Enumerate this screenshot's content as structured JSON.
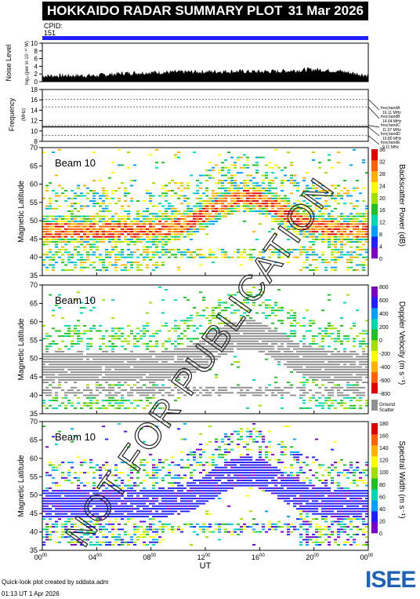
{
  "header": {
    "title": "HOKKAIDO RADAR SUMMARY PLOT",
    "date": "31 Mar 2026"
  },
  "cpid": {
    "label": "CPID:",
    "value": "151"
  },
  "footer": {
    "credit": "Quick-look plot created by sddata.adm",
    "timestamp": "01:13 UT  1 Apr 2026"
  },
  "watermark": "NOT FOR PUBLICATION",
  "logo": {
    "text": "ISEE"
  },
  "colors": {
    "cpid_bar": "#2020ff",
    "ground_scatter": "#909090"
  },
  "chart_data": [
    {
      "type": "area",
      "name": "noise-level",
      "ylabel": "Noise Level",
      "ylabel_sub": "log₁₀(pwr in 10⁻¹⁰ W)",
      "ylim": [
        0,
        10
      ],
      "yticks": [
        "0",
        "2",
        "4",
        "6",
        "8",
        "10"
      ],
      "x": [
        0,
        2,
        4,
        6,
        8,
        10,
        12,
        14,
        16,
        18,
        20,
        22,
        24
      ],
      "values": [
        1.5,
        1.6,
        1.6,
        2.2,
        2.4,
        2.5,
        2.6,
        2.7,
        2.6,
        2.8,
        3.2,
        2.7,
        1.6
      ]
    },
    {
      "type": "line",
      "name": "frequency",
      "ylabel": "Frequency",
      "ylabel_sub": "(MHz)",
      "ylim": [
        8,
        18
      ],
      "yticks": [
        "8",
        "10",
        "12",
        "14",
        "16",
        "18"
      ],
      "bands": [
        {
          "label": "freq bandA",
          "value": "16.11 MHz",
          "mhz": 16.11
        },
        {
          "label": "freq bandB",
          "value": "14.64 MHz",
          "mhz": 14.64
        },
        {
          "label": "freq bandC",
          "value": "11.07 MHz",
          "mhz": 11.07
        },
        {
          "label": "freq bandD",
          "value": "10.80 MHz",
          "mhz": 10.8
        },
        {
          "label": "freq bandE",
          "value": "9.11 MHz",
          "mhz": 9.11
        }
      ],
      "x": [
        0,
        24
      ],
      "values": [
        10.8,
        10.8
      ]
    },
    {
      "type": "heatmap",
      "name": "backscatter-power",
      "beam": "Beam 10",
      "ylabel": "Magnetic Latitude",
      "ylim": [
        35,
        70
      ],
      "yticks": [
        "35",
        "40",
        "45",
        "50",
        "55",
        "60",
        "65",
        "70"
      ],
      "colorbar": {
        "label": "Backscatter Power (dB)",
        "range": [
          0,
          36
        ],
        "ticks": [
          "0",
          "4",
          "8",
          "12",
          "16",
          "20",
          "24",
          "28",
          "32",
          "36"
        ],
        "colors": [
          "#7a00c8",
          "#2020ff",
          "#00a0ff",
          "#00d8b0",
          "#20c020",
          "#a0e000",
          "#ffff00",
          "#ffb000",
          "#ff6000",
          "#e00000"
        ]
      }
    },
    {
      "type": "heatmap",
      "name": "doppler-velocity",
      "beam": "Beam 10",
      "ylabel": "Magnetic Latitude",
      "ylim": [
        35,
        70
      ],
      "yticks": [
        "35",
        "40",
        "45",
        "50",
        "55",
        "60",
        "65",
        "70"
      ],
      "colorbar": {
        "label": "Doppler Velocity (m s⁻¹)",
        "range": [
          -800,
          800
        ],
        "ticks": [
          "-800",
          "-600",
          "-400",
          "-200",
          "0",
          "200",
          "400",
          "600",
          "800"
        ],
        "colors": [
          "#e00000",
          "#ff6000",
          "#ffb000",
          "#ffff00",
          "#a0e000",
          "#20c020",
          "#00d8b0",
          "#00a0ff",
          "#2020ff",
          "#7a00c8"
        ],
        "ground_label": "Ground Scatter"
      }
    },
    {
      "type": "heatmap",
      "name": "spectral-width",
      "beam": "Beam 10",
      "ylabel": "Magnetic Latitude",
      "ylim": [
        35,
        70
      ],
      "yticks": [
        "35",
        "40",
        "45",
        "50",
        "55",
        "60",
        "65",
        "70"
      ],
      "colorbar": {
        "label": "Spectral Width (m s⁻¹)",
        "range": [
          0,
          180
        ],
        "ticks": [
          "0",
          "20",
          "40",
          "60",
          "80",
          "100",
          "120",
          "140",
          "160",
          "180"
        ],
        "colors": [
          "#7a00c8",
          "#2020ff",
          "#00a0ff",
          "#00d8b0",
          "#20c020",
          "#a0e000",
          "#ffff00",
          "#ffb000",
          "#ff6000",
          "#e00000"
        ]
      }
    }
  ],
  "xaxis": {
    "label": "UT",
    "ticks": [
      {
        "hh": "00",
        "mm": "00"
      },
      {
        "hh": "04",
        "mm": "00"
      },
      {
        "hh": "08",
        "mm": "00"
      },
      {
        "hh": "12",
        "mm": "00"
      },
      {
        "hh": "16",
        "mm": "00"
      },
      {
        "hh": "20",
        "mm": "00"
      },
      {
        "hh": "00",
        "mm": "00"
      }
    ]
  }
}
